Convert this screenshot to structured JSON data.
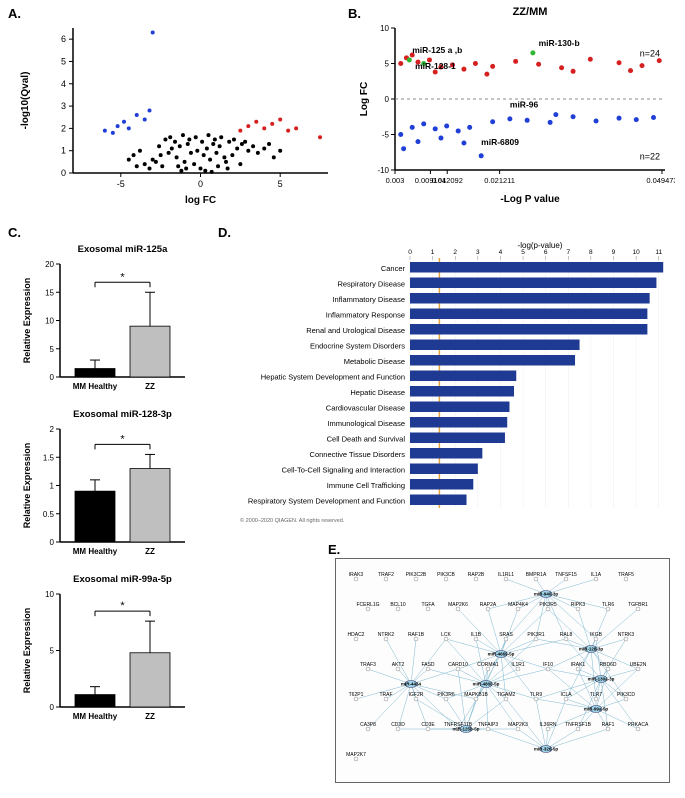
{
  "panels": {
    "A": {
      "label": "A."
    },
    "B": {
      "label": "B.",
      "title": "ZZ/MM"
    },
    "C": {
      "label": "C."
    },
    "D": {
      "label": "D."
    },
    "E": {
      "label": "E."
    }
  },
  "volcano": {
    "xlabel": "log FC",
    "ylabel": "-log10(Qval)",
    "xlim": [
      -8,
      8
    ],
    "ylim": [
      0,
      6.5
    ],
    "xticks": [
      -5,
      0,
      5
    ],
    "yticks": [
      0,
      1,
      2,
      3,
      4,
      5,
      6
    ],
    "background": "#ffffff",
    "colors": {
      "black": "#000000",
      "blue": "#1f3fd6",
      "red": "#d62020"
    },
    "points_black": [
      [
        -4,
        0.3
      ],
      [
        -3.5,
        0.4
      ],
      [
        -3,
        0.6
      ],
      [
        -2.5,
        0.8
      ],
      [
        -2,
        0.9
      ],
      [
        -1.8,
        1.1
      ],
      [
        -1.5,
        0.7
      ],
      [
        -1.3,
        1.2
      ],
      [
        -1,
        0.5
      ],
      [
        -0.8,
        1.3
      ],
      [
        -0.6,
        0.9
      ],
      [
        -0.4,
        0.4
      ],
      [
        -0.2,
        1.0
      ],
      [
        0,
        0.2
      ],
      [
        0.2,
        0.8
      ],
      [
        0.4,
        1.1
      ],
      [
        0.6,
        0.6
      ],
      [
        0.8,
        1.3
      ],
      [
        1,
        0.9
      ],
      [
        1.2,
        1.2
      ],
      [
        1.5,
        0.7
      ],
      [
        1.8,
        1.4
      ],
      [
        2,
        0.8
      ],
      [
        2.3,
        1.1
      ],
      [
        2.6,
        1.3
      ],
      [
        3,
        1.0
      ],
      [
        3.3,
        1.2
      ],
      [
        3.6,
        0.9
      ],
      [
        4,
        1.1
      ],
      [
        4.3,
        1.3
      ],
      [
        -2.2,
        1.5
      ],
      [
        -1.9,
        1.6
      ],
      [
        -1.6,
        1.4
      ],
      [
        -1.1,
        1.7
      ],
      [
        -0.7,
        1.5
      ],
      [
        -0.3,
        1.6
      ],
      [
        0.1,
        1.4
      ],
      [
        0.5,
        1.7
      ],
      [
        0.9,
        1.5
      ],
      [
        1.3,
        1.6
      ],
      [
        -3.2,
        0.2
      ],
      [
        -2.8,
        0.5
      ],
      [
        -2.4,
        0.3
      ],
      [
        -0.9,
        0.2
      ],
      [
        0.3,
        0.1
      ],
      [
        1.1,
        0.3
      ],
      [
        1.7,
        0.2
      ],
      [
        2.5,
        0.4
      ],
      [
        -1.2,
        0.1
      ],
      [
        0.7,
        0.05
      ],
      [
        -4.5,
        0.6
      ],
      [
        -4.2,
        0.8
      ],
      [
        4.6,
        0.7
      ],
      [
        5,
        1.0
      ],
      [
        -3.8,
        1.0
      ],
      [
        2.1,
        1.5
      ],
      [
        2.8,
        1.4
      ],
      [
        -2.6,
        1.2
      ],
      [
        -1.4,
        0.3
      ],
      [
        1.6,
        0.5
      ]
    ],
    "points_blue": [
      [
        -6,
        1.9
      ],
      [
        -5.5,
        1.8
      ],
      [
        -5.2,
        2.1
      ],
      [
        -4.8,
        2.3
      ],
      [
        -4.5,
        2.0
      ],
      [
        -4,
        2.6
      ],
      [
        -3.5,
        2.4
      ],
      [
        -3.2,
        2.8
      ],
      [
        -3,
        6.3
      ]
    ],
    "points_red": [
      [
        2.5,
        1.9
      ],
      [
        3,
        2.1
      ],
      [
        3.5,
        2.3
      ],
      [
        4,
        2.0
      ],
      [
        4.5,
        2.2
      ],
      [
        5,
        2.4
      ],
      [
        5.5,
        1.9
      ],
      [
        6,
        2.0
      ],
      [
        7.5,
        1.6
      ]
    ]
  },
  "scatter_b": {
    "xlabel": "-Log P value",
    "ylabel": "Log FC",
    "xticks_labels": [
      "0.003",
      "0.009164",
      "0.012092",
      "0.021211",
      "0.049473"
    ],
    "xticks_pos": [
      0.003,
      0.009164,
      0.012092,
      0.021211,
      0.049473
    ],
    "ylim": [
      -10,
      10
    ],
    "yticks": [
      -10,
      -5,
      0,
      5,
      10
    ],
    "n_up": "n=24",
    "n_down": "n=22",
    "colors": {
      "red": "#d62020",
      "green": "#2fb82f",
      "blue": "#1f3fd6",
      "dashline": "#888"
    },
    "labels": [
      {
        "text": "miR-125 a ,b",
        "x": 0.006,
        "y": 6.5
      },
      {
        "text": "miR-128-1",
        "x": 0.0065,
        "y": 4.2
      },
      {
        "text": "miR-130-b",
        "x": 0.028,
        "y": 7.5
      },
      {
        "text": "miR-96",
        "x": 0.023,
        "y": -1.2
      },
      {
        "text": "miR-6809",
        "x": 0.018,
        "y": -6.5
      }
    ],
    "points_red": [
      [
        0.004,
        5
      ],
      [
        0.005,
        5.8
      ],
      [
        0.007,
        5.2
      ],
      [
        0.009,
        5.5
      ],
      [
        0.011,
        4.5
      ],
      [
        0.013,
        4.8
      ],
      [
        0.015,
        4.2
      ],
      [
        0.017,
        5.0
      ],
      [
        0.02,
        4.6
      ],
      [
        0.024,
        5.3
      ],
      [
        0.028,
        4.9
      ],
      [
        0.032,
        4.4
      ],
      [
        0.037,
        5.6
      ],
      [
        0.042,
        5.1
      ],
      [
        0.046,
        4.7
      ],
      [
        0.049,
        5.4
      ],
      [
        0.006,
        6.2
      ],
      [
        0.01,
        3.8
      ],
      [
        0.019,
        3.5
      ],
      [
        0.034,
        3.9
      ],
      [
        0.044,
        4.0
      ]
    ],
    "points_green": [
      [
        0.0055,
        5.5
      ],
      [
        0.008,
        5.0
      ],
      [
        0.027,
        6.5
      ]
    ],
    "points_blue": [
      [
        0.004,
        -5
      ],
      [
        0.0045,
        -7
      ],
      [
        0.006,
        -4
      ],
      [
        0.008,
        -3.5
      ],
      [
        0.01,
        -4.2
      ],
      [
        0.012,
        -3.8
      ],
      [
        0.014,
        -4.5
      ],
      [
        0.016,
        -4.0
      ],
      [
        0.018,
        -8
      ],
      [
        0.02,
        -3.2
      ],
      [
        0.023,
        -2.8
      ],
      [
        0.026,
        -3.0
      ],
      [
        0.03,
        -3.3
      ],
      [
        0.034,
        -2.5
      ],
      [
        0.038,
        -3.1
      ],
      [
        0.042,
        -2.7
      ],
      [
        0.045,
        -2.9
      ],
      [
        0.048,
        -2.6
      ],
      [
        0.007,
        -6
      ],
      [
        0.011,
        -5.5
      ],
      [
        0.015,
        -6.2
      ],
      [
        0.031,
        -2.2
      ]
    ]
  },
  "bar_charts": [
    {
      "title": "Exosomal miR-125a",
      "ylabel": "Relative Expression",
      "ylim": [
        0,
        20
      ],
      "yticks": [
        0,
        5,
        10,
        15,
        20
      ],
      "bars": [
        {
          "label": "MM Healthy",
          "value": 1.5,
          "err": 1.5,
          "color": "#000000"
        },
        {
          "label": "ZZ",
          "value": 9,
          "err": 6,
          "color": "#bfbfbf"
        }
      ],
      "sig": "*"
    },
    {
      "title": "Exosomal miR-128-3p",
      "ylabel": "Relative Expression",
      "ylim": [
        0,
        2
      ],
      "yticks": [
        0,
        0.5,
        1.0,
        1.5,
        2.0
      ],
      "bars": [
        {
          "label": "MM Healthy",
          "value": 0.9,
          "err": 0.2,
          "color": "#000000"
        },
        {
          "label": "ZZ",
          "value": 1.3,
          "err": 0.25,
          "color": "#bfbfbf"
        }
      ],
      "sig": "*"
    },
    {
      "title": "Exosomal miR-99a-5p",
      "ylabel": "Relative Expression",
      "ylim": [
        0,
        10
      ],
      "yticks": [
        0,
        5,
        10
      ],
      "bars": [
        {
          "label": "MM Healthy",
          "value": 1.1,
          "err": 0.7,
          "color": "#000000"
        },
        {
          "label": "ZZ",
          "value": 4.8,
          "err": 2.8,
          "color": "#bfbfbf"
        }
      ],
      "sig": "*"
    }
  ],
  "hbar": {
    "xlabel": "-log(p-value)",
    "xlim": [
      0,
      11.5
    ],
    "xticks": [
      0,
      1,
      2,
      3,
      4,
      5,
      6,
      7,
      8,
      9,
      10,
      11
    ],
    "bar_color": "#1f3a93",
    "threshold_color": "#e8a23a",
    "copyright": "© 2000–2020 QIAGEN. All rights reserved.",
    "categories": [
      {
        "label": "Cancer",
        "value": 11.2
      },
      {
        "label": "Respiratory Disease",
        "value": 10.9
      },
      {
        "label": "Inflammatory Disease",
        "value": 10.6
      },
      {
        "label": "Inflammatory Response",
        "value": 10.5
      },
      {
        "label": "Renal and Urological Disease",
        "value": 10.5
      },
      {
        "label": "Endocrine System Disorders",
        "value": 7.5
      },
      {
        "label": "Metabolic Disease",
        "value": 7.3
      },
      {
        "label": "Hepatic System Development and Function",
        "value": 4.7
      },
      {
        "label": "Hepatic Disease",
        "value": 4.6
      },
      {
        "label": "Cardiovascular Disease",
        "value": 4.4
      },
      {
        "label": "Immunological Disease",
        "value": 4.3
      },
      {
        "label": "Cell Death and Survival",
        "value": 4.2
      },
      {
        "label": "Connective Tissue Disorders",
        "value": 3.2
      },
      {
        "label": "Cell-To-Cell Signaling and Interaction",
        "value": 3.0
      },
      {
        "label": "Immune Cell Trafficking",
        "value": 2.8
      },
      {
        "label": "Respiratory System Development and Function",
        "value": 2.5
      }
    ]
  },
  "network": {
    "node_color": "#9fd4e8",
    "edge_color": "#7fb8d0",
    "label_fontsize": 5,
    "hubs": [
      "miR-940-3p",
      "miR-4669-5p",
      "miR-4434",
      "miR-4800-5p",
      "miR-125b-5p",
      "miR-130a-3p",
      "miR-128-3p",
      "miR-99a-5p",
      "miR-326-5p"
    ],
    "nodes": [
      "IRAK3",
      "TRAF2",
      "PIK3C2B",
      "PIK3CB",
      "RAP2B",
      "IL1RL1",
      "BMPR1A",
      "TNFSF15",
      "IL1A",
      "TRAF5",
      "FCERL1G",
      "BCL10",
      "TGFA",
      "MAP2K6",
      "RAP2A",
      "MAP4K4",
      "PIK3R5",
      "RIPK3",
      "TLR6",
      "TGFBR1",
      "HDAC2",
      "NTRK2",
      "RAF1B",
      "LCK",
      "IL1B",
      "SRAS",
      "PIK3R1",
      "RAL8",
      "IKGB",
      "NTRK3",
      "TRAF3",
      "AKT2",
      "FASD",
      "CARD10",
      "CORMA1",
      "IL1R1",
      "IF10",
      "IRAK1",
      "RBD6D",
      "UBE2N",
      "T62P1",
      "TRAF",
      "IGF2R",
      "PIK3R6",
      "MAPKB1B",
      "TIGAM2",
      "TLR9",
      "ICLA",
      "TLR7",
      "PIK3CD",
      "CA3P8",
      "CD3D",
      "CD3E",
      "TNFRSF11B",
      "TNFAIP3",
      "MAP2K3",
      "IL36RN",
      "TNFRSF1B",
      "RAF1",
      "PRKACA",
      "MAP2K7"
    ]
  }
}
